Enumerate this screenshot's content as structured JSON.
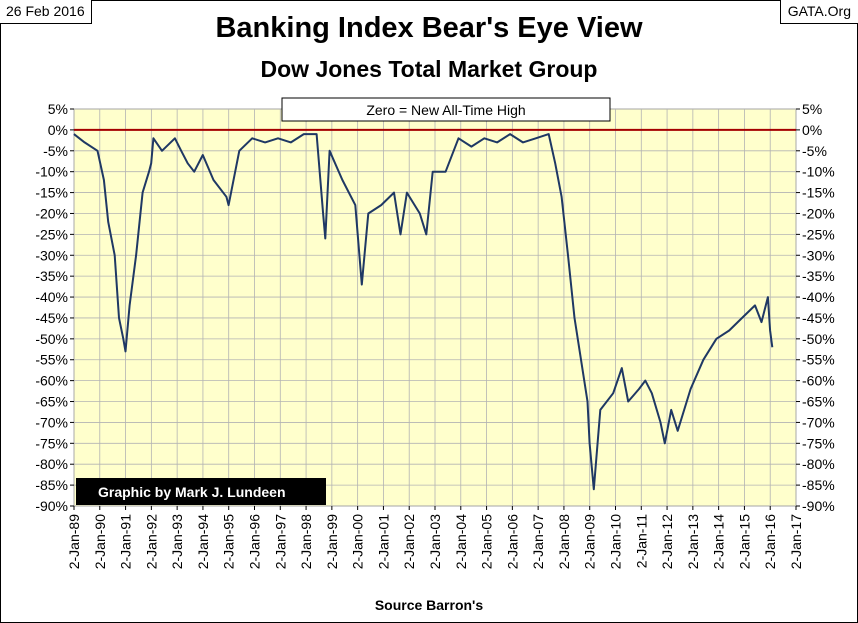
{
  "header": {
    "date": "26 Feb 2016",
    "source_site": "GATA.Org",
    "title": "Banking Index Bear's Eye View",
    "subtitle": "Dow Jones Total Market Group"
  },
  "footer": {
    "source": "Source Barron's"
  },
  "colors": {
    "plot_background": "#ffffcc",
    "series": "#1f3864",
    "zero_line": "#a50000",
    "credit_box": "#000000"
  },
  "chart_data": {
    "type": "line",
    "title": "Banking Index Bear's Eye View",
    "subtitle": "Dow Jones Total Market Group",
    "xlabel": "Source Barron's",
    "ylabel": "",
    "x_ticks": [
      "2-Jan-89",
      "2-Jan-90",
      "2-Jan-91",
      "2-Jan-92",
      "2-Jan-93",
      "2-Jan-94",
      "2-Jan-95",
      "2-Jan-96",
      "2-Jan-97",
      "2-Jan-98",
      "2-Jan-99",
      "2-Jan-00",
      "2-Jan-01",
      "2-Jan-02",
      "2-Jan-03",
      "2-Jan-04",
      "2-Jan-05",
      "2-Jan-06",
      "2-Jan-07",
      "2-Jan-08",
      "2-Jan-09",
      "2-Jan-10",
      "2-Jan-11",
      "2-Jan-12",
      "2-Jan-13",
      "2-Jan-14",
      "2-Jan-15",
      "2-Jan-16",
      "2-Jan-17"
    ],
    "y_ticks": [
      "5%",
      "0%",
      "-5%",
      "-10%",
      "-15%",
      "-20%",
      "-25%",
      "-30%",
      "-35%",
      "-40%",
      "-45%",
      "-50%",
      "-55%",
      "-60%",
      "-65%",
      "-70%",
      "-75%",
      "-80%",
      "-85%",
      "-90%"
    ],
    "xlim": [
      "1989-01-02",
      "2017-01-02"
    ],
    "ylim": [
      -90,
      5
    ],
    "grid": true,
    "reference_line": {
      "y": 0,
      "label": "Zero = New All-Time High"
    },
    "credit": "Graphic by Mark J. Lundeen",
    "series": [
      {
        "x": [
          "1989-01",
          "1989-06",
          "1989-12",
          "1990-03",
          "1990-05",
          "1990-08",
          "1990-10",
          "1990-12",
          "1991-01",
          "1991-03",
          "1991-06",
          "1991-09",
          "1991-12",
          "1992-01",
          "1992-02",
          "1992-06",
          "1992-12",
          "1993-03",
          "1993-06",
          "1993-09",
          "1994-01",
          "1994-06",
          "1994-12",
          "1995-01",
          "1995-06",
          "1995-12",
          "1996-06",
          "1996-12",
          "1997-06",
          "1997-12",
          "1998-06",
          "1998-09",
          "1998-10",
          "1998-12",
          "1999-06",
          "1999-12",
          "2000-03",
          "2000-06",
          "2000-12",
          "2001-06",
          "2001-09",
          "2001-12",
          "2002-06",
          "2002-09",
          "2002-12",
          "2003-06",
          "2003-12",
          "2004-06",
          "2004-12",
          "2005-06",
          "2005-12",
          "2006-06",
          "2006-12",
          "2007-06",
          "2007-09",
          "2007-12",
          "2008-03",
          "2008-06",
          "2008-09",
          "2008-12",
          "2009-01",
          "2009-03",
          "2009-06",
          "2009-12",
          "2010-04",
          "2010-07",
          "2010-12",
          "2011-03",
          "2011-06",
          "2011-10",
          "2011-12",
          "2012-03",
          "2012-06",
          "2012-12",
          "2013-06",
          "2013-12",
          "2014-06",
          "2014-12",
          "2015-06",
          "2015-09",
          "2015-12",
          "2016-01",
          "2016-02"
        ],
        "y": [
          -1,
          -3,
          -5,
          -12,
          -22,
          -30,
          -45,
          -50,
          -53,
          -42,
          -30,
          -15,
          -10,
          -8,
          -2,
          -5,
          -2,
          -5,
          -8,
          -10,
          -6,
          -12,
          -16,
          -18,
          -5,
          -2,
          -3,
          -2,
          -3,
          -1,
          -1,
          -20,
          -26,
          -5,
          -12,
          -18,
          -37,
          -20,
          -18,
          -15,
          -25,
          -15,
          -20,
          -25,
          -10,
          -10,
          -2,
          -4,
          -2,
          -3,
          -1,
          -3,
          -2,
          -1,
          -8,
          -16,
          -30,
          -45,
          -55,
          -65,
          -75,
          -86,
          -67,
          -63,
          -57,
          -65,
          -62,
          -60,
          -63,
          -70,
          -75,
          -67,
          -72,
          -62,
          -55,
          -50,
          -48,
          -45,
          -42,
          -46,
          -40,
          -48,
          -52
        ]
      }
    ]
  }
}
